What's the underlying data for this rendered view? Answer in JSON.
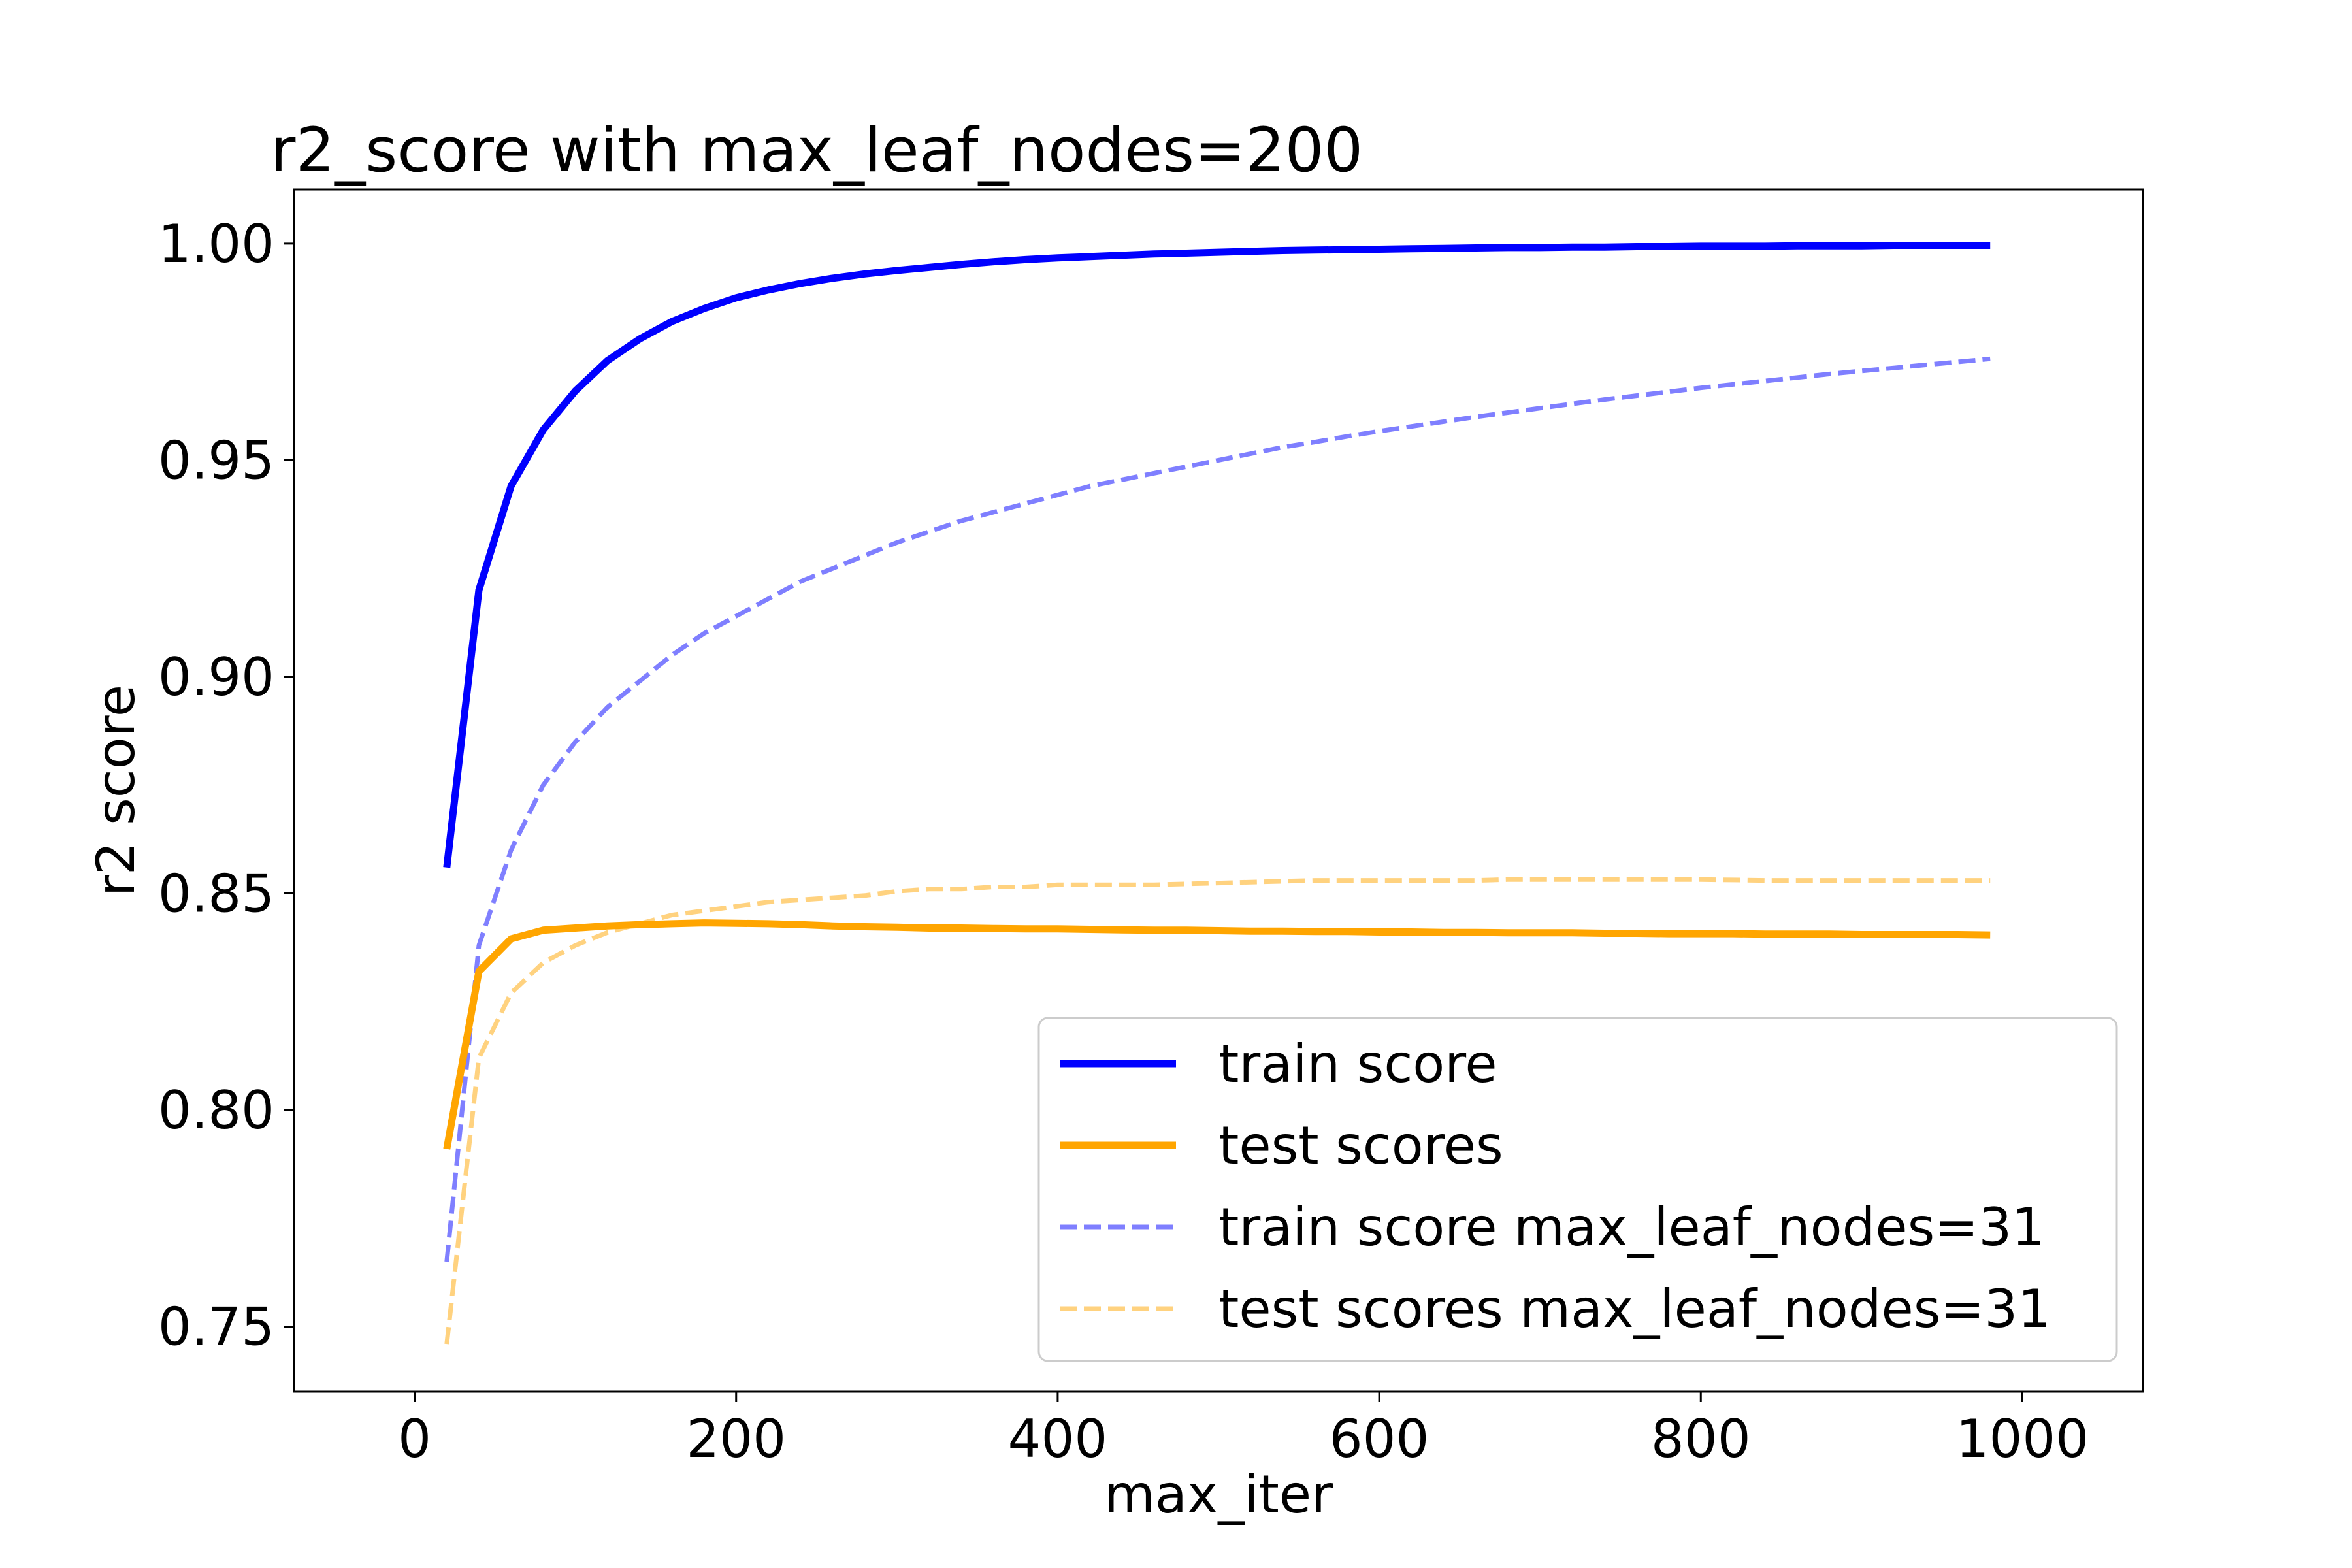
{
  "chart_data": {
    "type": "line",
    "title": "r2_score with max_leaf_nodes=200",
    "xlabel": "max_iter",
    "ylabel": "r2 score",
    "xlim": [
      -75,
      1075
    ],
    "ylim": [
      0.735,
      1.0125
    ],
    "xticks": [
      0,
      200,
      400,
      600,
      800,
      1000
    ],
    "xtick_labels": [
      "0",
      "200",
      "400",
      "600",
      "800",
      "1000"
    ],
    "yticks": [
      0.75,
      0.8,
      0.85,
      0.9,
      0.95,
      1.0
    ],
    "ytick_labels": [
      "0.75",
      "0.80",
      "0.85",
      "0.90",
      "0.95",
      "1.00"
    ],
    "grid": false,
    "legend_position": "lower-right",
    "x": [
      20,
      40,
      60,
      80,
      100,
      120,
      140,
      160,
      180,
      200,
      220,
      240,
      260,
      280,
      300,
      320,
      340,
      360,
      380,
      400,
      420,
      440,
      460,
      480,
      500,
      520,
      540,
      560,
      580,
      600,
      620,
      640,
      660,
      680,
      700,
      720,
      740,
      760,
      780,
      800,
      820,
      840,
      860,
      880,
      900,
      920,
      940,
      960,
      980
    ],
    "series": [
      {
        "name": "train score",
        "color": "#0000ff",
        "style": "solid",
        "opacity": 1.0,
        "values": [
          0.856,
          0.92,
          0.944,
          0.957,
          0.966,
          0.973,
          0.978,
          0.982,
          0.985,
          0.9875,
          0.9893,
          0.9908,
          0.992,
          0.993,
          0.9938,
          0.9945,
          0.9952,
          0.9958,
          0.9963,
          0.9967,
          0.997,
          0.9973,
          0.9976,
          0.9978,
          0.998,
          0.9982,
          0.9984,
          0.9985,
          0.9986,
          0.9987,
          0.9988,
          0.9989,
          0.999,
          0.9991,
          0.9991,
          0.9992,
          0.9992,
          0.9993,
          0.9993,
          0.9994,
          0.9994,
          0.9994,
          0.9995,
          0.9995,
          0.9995,
          0.9996,
          0.9996,
          0.9996,
          0.9996
        ]
      },
      {
        "name": "test scores",
        "color": "#ffa500",
        "style": "solid",
        "opacity": 1.0,
        "values": [
          0.791,
          0.832,
          0.8395,
          0.8415,
          0.842,
          0.8425,
          0.8428,
          0.843,
          0.8432,
          0.8431,
          0.843,
          0.8428,
          0.8425,
          0.8423,
          0.8422,
          0.842,
          0.842,
          0.8419,
          0.8418,
          0.8418,
          0.8417,
          0.8416,
          0.8415,
          0.8415,
          0.8414,
          0.8413,
          0.8413,
          0.8412,
          0.8412,
          0.8411,
          0.8411,
          0.841,
          0.841,
          0.8409,
          0.8409,
          0.8409,
          0.8408,
          0.8408,
          0.8407,
          0.8407,
          0.8407,
          0.8406,
          0.8406,
          0.8406,
          0.8405,
          0.8405,
          0.8405,
          0.8405,
          0.8404
        ]
      },
      {
        "name": "train score max_leaf_nodes=31",
        "color": "#0000ff",
        "style": "dashed",
        "opacity": 0.5,
        "values": [
          0.765,
          0.838,
          0.86,
          0.875,
          0.885,
          0.893,
          0.899,
          0.905,
          0.91,
          0.914,
          0.918,
          0.922,
          0.925,
          0.928,
          0.931,
          0.9335,
          0.936,
          0.938,
          0.94,
          0.942,
          0.944,
          0.9455,
          0.947,
          0.9485,
          0.95,
          0.9515,
          0.953,
          0.9542,
          0.9555,
          0.9567,
          0.9578,
          0.9589,
          0.96,
          0.961,
          0.962,
          0.963,
          0.964,
          0.9649,
          0.9658,
          0.9667,
          0.9675,
          0.9683,
          0.9691,
          0.9699,
          0.9706,
          0.9713,
          0.972,
          0.9727,
          0.9734
        ]
      },
      {
        "name": "test scores max_leaf_nodes=31",
        "color": "#ffa500",
        "style": "dashed",
        "opacity": 0.5,
        "values": [
          0.746,
          0.812,
          0.827,
          0.834,
          0.838,
          0.841,
          0.843,
          0.845,
          0.846,
          0.847,
          0.848,
          0.8485,
          0.849,
          0.8495,
          0.8505,
          0.851,
          0.851,
          0.8515,
          0.8515,
          0.852,
          0.852,
          0.852,
          0.852,
          0.8522,
          0.8524,
          0.8526,
          0.8528,
          0.853,
          0.853,
          0.853,
          0.853,
          0.853,
          0.853,
          0.8532,
          0.8532,
          0.8532,
          0.8532,
          0.8532,
          0.8532,
          0.8532,
          0.8531,
          0.853,
          0.853,
          0.853,
          0.853,
          0.853,
          0.853,
          0.853,
          0.853
        ]
      }
    ]
  }
}
